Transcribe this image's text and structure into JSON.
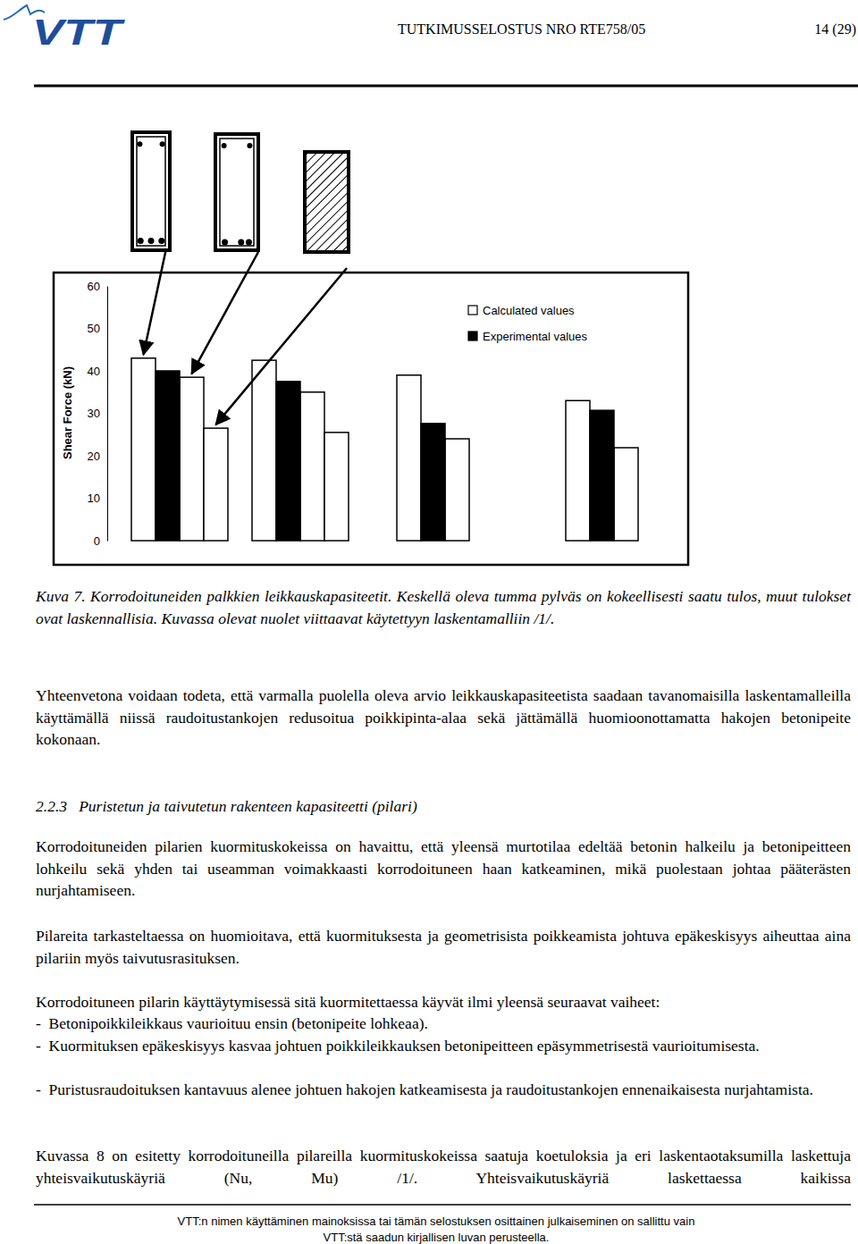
{
  "header": {
    "logo": "VTT",
    "report": "TUTKIMUSSELOSTUS NRO RTE758/05",
    "page": "14 (29)"
  },
  "chart_data": {
    "type": "bar",
    "categories": [
      null,
      null,
      null,
      null,
      null,
      null,
      null,
      null,
      null,
      null,
      null,
      null,
      null,
      null,
      null,
      null,
      null,
      null,
      null,
      null,
      null,
      null,
      null
    ],
    "series": [
      {
        "name": "Calculated values",
        "color": "#ffffff",
        "values": [
          43,
          null,
          38.5,
          26.5,
          null,
          42.5,
          null,
          35,
          25.5,
          null,
          null,
          39,
          null,
          24,
          null,
          null,
          null,
          null,
          33,
          null,
          21.9,
          null,
          null
        ]
      },
      {
        "name": "Experimental values",
        "color": "#000000",
        "values": [
          null,
          40,
          null,
          null,
          null,
          null,
          37.5,
          null,
          null,
          null,
          null,
          null,
          27.6,
          null,
          null,
          null,
          null,
          null,
          null,
          30.7,
          null,
          null,
          null
        ]
      }
    ],
    "y_label": "Shear Force (kN)",
    "ylim": [
      0,
      60
    ],
    "yticks": [
      0,
      10,
      20,
      30,
      40,
      50,
      60
    ],
    "legend": "top-right",
    "tick_labels": "y"
  },
  "caption": "Kuva 7.  Korrodoituneiden palkkien leikkauskapasiteetit. Keskellä oleva tumma pylväs on kokeellisesti saatu tulos, muut tulokset ovat laskennallisia. Kuvassa olevat nuolet viittaavat käytettyyn laskentamalliin /1/.",
  "summary": "Yhteenvetona voidaan todeta, että varmalla puolella oleva arvio leikkauskapasiteetista saadaan tavanomaisilla laskentamalleilla käyttämällä niissä raudoitustankojen redusoitua poikkipinta-alaa sekä jättämällä huomioonottamatta hakojen betonipeite kokonaan.",
  "section": {
    "number": "2.2.3",
    "title": "Puristetun ja taivutetun rakenteen kapasiteetti (pilari)"
  },
  "paragraphs": [
    "Korrodoituneiden pilarien kuormituskokeissa on havaittu, että yleensä murtotilaa edeltää betonin halkeilu ja betonipeitteen lohkeilu sekä yhden tai useamman voimakkaasti korrodoituneen haan katkeaminen, mikä puolestaan johtaa pääterästen nurjahtamiseen.",
    "Pilareita tarkasteltaessa on huomioitava, että kuormituksesta ja geometrisista poikkeamista johtuva epäkeskisyys aiheuttaa aina pilariin myös taivutusrasituksen.",
    "Korrodoituneen pilarin käyttäytymisessä sitä kuormitettaessa käyvät ilmi yleensä seuraavat vaiheet:"
  ],
  "list": [
    "Betonipoikkileikkaus vaurioituu ensin (betonipeite lohkeaa).",
    "Kuormituksen epäkeskisyys kasvaa johtuen poikkileikkauksen betonipeitteen epäsymmetrisestä vaurioitumisesta.",
    "Puristusraudoituksen kantavuus alenee johtuen hakojen katkeamisesta ja raudoitustankojen ennenaikaisesta nurjahtamista."
  ],
  "closing": "Kuvassa 8 on esitetty korrodoituneilla pilareilla kuormituskokeissa saatuja koetuloksia ja eri laskentaotaksumilla laskettuja yhteisvaikutuskäyriä (Nu, Mu) /1/. Yhteisvaikutuskäyriä laskettaessa kaikissa",
  "footer": [
    "VTT:n nimen käyttäminen mainoksissa tai tämän selostuksen osittainen julkaiseminen on sallittu vain",
    "VTT:stä saadun kirjallisen luvan perusteella."
  ]
}
